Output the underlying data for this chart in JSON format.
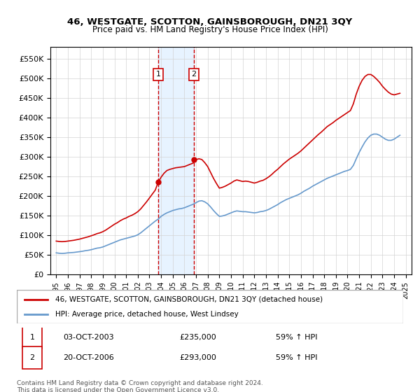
{
  "title": "46, WESTGATE, SCOTTON, GAINSBOROUGH, DN21 3QY",
  "subtitle": "Price paid vs. HM Land Registry's House Price Index (HPI)",
  "hpi_label": "HPI: Average price, detached house, West Lindsey",
  "property_label": "46, WESTGATE, SCOTTON, GAINSBOROUGH, DN21 3QY (detached house)",
  "footer": "Contains HM Land Registry data © Crown copyright and database right 2024.\nThis data is licensed under the Open Government Licence v3.0.",
  "transaction1_label": "1",
  "transaction1_date": "03-OCT-2003",
  "transaction1_price": "£235,000",
  "transaction1_hpi": "59% ↑ HPI",
  "transaction2_label": "2",
  "transaction2_date": "20-OCT-2006",
  "transaction2_price": "£293,000",
  "transaction2_hpi": "59% ↑ HPI",
  "property_color": "#cc0000",
  "hpi_color": "#6699cc",
  "shading_color": "#ddeeff",
  "transaction1_x": 2003.75,
  "transaction2_x": 2006.8,
  "ylim": [
    0,
    580000
  ],
  "xlim": [
    1994.5,
    2025.5
  ],
  "yticks": [
    0,
    50000,
    100000,
    150000,
    200000,
    250000,
    300000,
    350000,
    400000,
    450000,
    500000,
    550000
  ],
  "ytick_labels": [
    "£0",
    "£50K",
    "£100K",
    "£150K",
    "£200K",
    "£250K",
    "£300K",
    "£350K",
    "£400K",
    "£450K",
    "£500K",
    "£550K"
  ],
  "xticks": [
    1995,
    1996,
    1997,
    1998,
    1999,
    2000,
    2001,
    2002,
    2003,
    2004,
    2005,
    2006,
    2007,
    2008,
    2009,
    2010,
    2011,
    2012,
    2013,
    2014,
    2015,
    2016,
    2017,
    2018,
    2019,
    2020,
    2021,
    2022,
    2023,
    2024,
    2025
  ],
  "hpi_data_x": [
    1995.0,
    1995.25,
    1995.5,
    1995.75,
    1996.0,
    1996.25,
    1996.5,
    1996.75,
    1997.0,
    1997.25,
    1997.5,
    1997.75,
    1998.0,
    1998.25,
    1998.5,
    1998.75,
    1999.0,
    1999.25,
    1999.5,
    1999.75,
    2000.0,
    2000.25,
    2000.5,
    2000.75,
    2001.0,
    2001.25,
    2001.5,
    2001.75,
    2002.0,
    2002.25,
    2002.5,
    2002.75,
    2003.0,
    2003.25,
    2003.5,
    2003.75,
    2004.0,
    2004.25,
    2004.5,
    2004.75,
    2005.0,
    2005.25,
    2005.5,
    2005.75,
    2006.0,
    2006.25,
    2006.5,
    2006.75,
    2007.0,
    2007.25,
    2007.5,
    2007.75,
    2008.0,
    2008.25,
    2008.5,
    2008.75,
    2009.0,
    2009.25,
    2009.5,
    2009.75,
    2010.0,
    2010.25,
    2010.5,
    2010.75,
    2011.0,
    2011.25,
    2011.5,
    2011.75,
    2012.0,
    2012.25,
    2012.5,
    2012.75,
    2013.0,
    2013.25,
    2013.5,
    2013.75,
    2014.0,
    2014.25,
    2014.5,
    2014.75,
    2015.0,
    2015.25,
    2015.5,
    2015.75,
    2016.0,
    2016.25,
    2016.5,
    2016.75,
    2017.0,
    2017.25,
    2017.5,
    2017.75,
    2018.0,
    2018.25,
    2018.5,
    2018.75,
    2019.0,
    2019.25,
    2019.5,
    2019.75,
    2020.0,
    2020.25,
    2020.5,
    2020.75,
    2021.0,
    2021.25,
    2021.5,
    2021.75,
    2022.0,
    2022.25,
    2022.5,
    2022.75,
    2023.0,
    2023.25,
    2023.5,
    2023.75,
    2024.0,
    2024.25,
    2024.5
  ],
  "hpi_data_y": [
    55000,
    54000,
    53500,
    54000,
    55000,
    55500,
    56000,
    57000,
    58000,
    59000,
    60500,
    61500,
    63000,
    65000,
    67000,
    68000,
    70000,
    73000,
    76000,
    79000,
    82000,
    85000,
    88000,
    90000,
    92000,
    94000,
    96000,
    98000,
    101000,
    106000,
    112000,
    118000,
    124000,
    130000,
    136000,
    141000,
    148000,
    153000,
    157000,
    160000,
    163000,
    165000,
    167000,
    168000,
    170000,
    173000,
    176000,
    179000,
    183000,
    187000,
    188000,
    185000,
    180000,
    172000,
    163000,
    155000,
    148000,
    149000,
    151000,
    154000,
    157000,
    160000,
    162000,
    161000,
    160000,
    160000,
    159000,
    158000,
    157000,
    158000,
    160000,
    161000,
    163000,
    166000,
    170000,
    174000,
    178000,
    183000,
    187000,
    191000,
    194000,
    197000,
    200000,
    203000,
    207000,
    212000,
    216000,
    220000,
    225000,
    229000,
    233000,
    237000,
    241000,
    245000,
    248000,
    251000,
    254000,
    257000,
    260000,
    263000,
    265000,
    268000,
    278000,
    295000,
    311000,
    325000,
    338000,
    348000,
    355000,
    358000,
    358000,
    355000,
    350000,
    345000,
    342000,
    342000,
    345000,
    350000,
    355000
  ],
  "property_data_x": [
    1995.0,
    1995.25,
    1995.5,
    1995.75,
    1996.0,
    1996.25,
    1996.5,
    1996.75,
    1997.0,
    1997.25,
    1997.5,
    1997.75,
    1998.0,
    1998.25,
    1998.5,
    1998.75,
    1999.0,
    1999.25,
    1999.5,
    1999.75,
    2000.0,
    2000.25,
    2000.5,
    2000.75,
    2001.0,
    2001.25,
    2001.5,
    2001.75,
    2002.0,
    2002.25,
    2002.5,
    2002.75,
    2003.0,
    2003.25,
    2003.5,
    2003.75,
    2004.0,
    2004.25,
    2004.5,
    2004.75,
    2005.0,
    2005.25,
    2005.5,
    2005.75,
    2006.0,
    2006.25,
    2006.5,
    2006.75,
    2007.0,
    2007.25,
    2007.5,
    2007.75,
    2008.0,
    2008.25,
    2008.5,
    2008.75,
    2009.0,
    2009.25,
    2009.5,
    2009.75,
    2010.0,
    2010.25,
    2010.5,
    2010.75,
    2011.0,
    2011.25,
    2011.5,
    2011.75,
    2012.0,
    2012.25,
    2012.5,
    2012.75,
    2013.0,
    2013.25,
    2013.5,
    2013.75,
    2014.0,
    2014.25,
    2014.5,
    2014.75,
    2015.0,
    2015.25,
    2015.5,
    2015.75,
    2016.0,
    2016.25,
    2016.5,
    2016.75,
    2017.0,
    2017.25,
    2017.5,
    2017.75,
    2018.0,
    2018.25,
    2018.5,
    2018.75,
    2019.0,
    2019.25,
    2019.5,
    2019.75,
    2020.0,
    2020.25,
    2020.5,
    2020.75,
    2021.0,
    2021.25,
    2021.5,
    2021.75,
    2022.0,
    2022.25,
    2022.5,
    2022.75,
    2023.0,
    2023.25,
    2023.5,
    2023.75,
    2024.0,
    2024.25,
    2024.5
  ],
  "property_data_y": [
    85000,
    84000,
    83500,
    84000,
    85000,
    86000,
    87000,
    88500,
    90000,
    92000,
    94000,
    96000,
    98500,
    101000,
    104000,
    106000,
    109000,
    113000,
    118000,
    123000,
    128000,
    132000,
    137000,
    141000,
    144000,
    148000,
    151000,
    155000,
    160000,
    167000,
    176000,
    185000,
    195000,
    205000,
    215000,
    235000,
    248000,
    258000,
    265000,
    268000,
    270000,
    272000,
    273000,
    274000,
    275000,
    278000,
    281000,
    284000,
    293000,
    295000,
    293000,
    285000,
    275000,
    260000,
    245000,
    232000,
    220000,
    222000,
    225000,
    229000,
    233000,
    238000,
    241000,
    239000,
    237000,
    238000,
    237000,
    235000,
    233000,
    235000,
    238000,
    240000,
    244000,
    249000,
    255000,
    262000,
    268000,
    275000,
    282000,
    288000,
    294000,
    299000,
    304000,
    309000,
    315000,
    322000,
    329000,
    336000,
    343000,
    350000,
    357000,
    363000,
    370000,
    377000,
    382000,
    387000,
    393000,
    398000,
    403000,
    408000,
    413000,
    418000,
    435000,
    460000,
    480000,
    495000,
    505000,
    510000,
    510000,
    505000,
    498000,
    490000,
    480000,
    472000,
    465000,
    460000,
    458000,
    460000,
    462000
  ]
}
